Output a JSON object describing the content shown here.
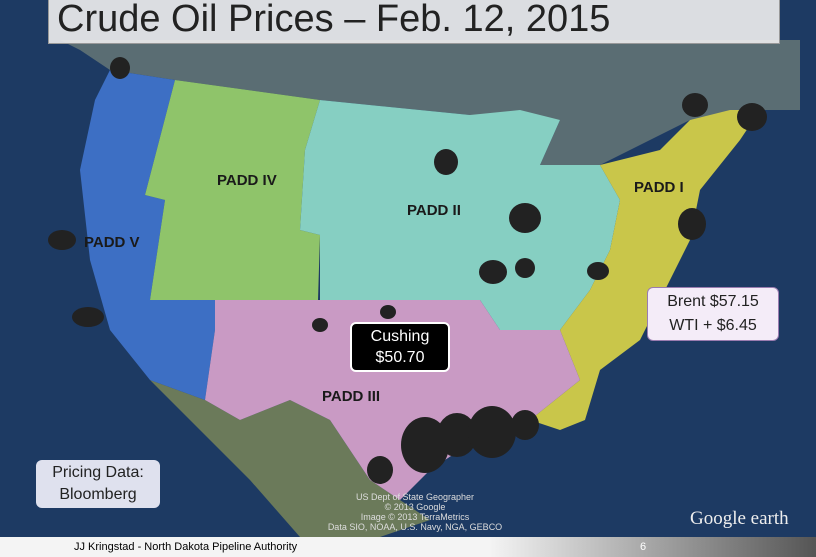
{
  "title": "Crude Oil Prices – Feb. 12, 2015",
  "regions": [
    "PADD IV",
    "PADD II",
    "PADD I",
    "PADD V",
    "PADD III"
  ],
  "cushing": {
    "name": "Cushing",
    "price": "$50.70"
  },
  "brent": {
    "line1": "Brent $57.15",
    "line2": "WTI + $6.45"
  },
  "source": {
    "line1": "Pricing Data:",
    "line2": "Bloomberg"
  },
  "attribution": [
    "US Dept of State Geographer",
    "© 2013 Google",
    "Image © 2013 TerraMetrics",
    "Data SIO, NOAA, U.S. Navy, NGA, GEBCO"
  ],
  "brand": "Google earth",
  "footer": {
    "author": "JJ Kringstad - North Dakota Pipeline Authority",
    "page": "6"
  }
}
